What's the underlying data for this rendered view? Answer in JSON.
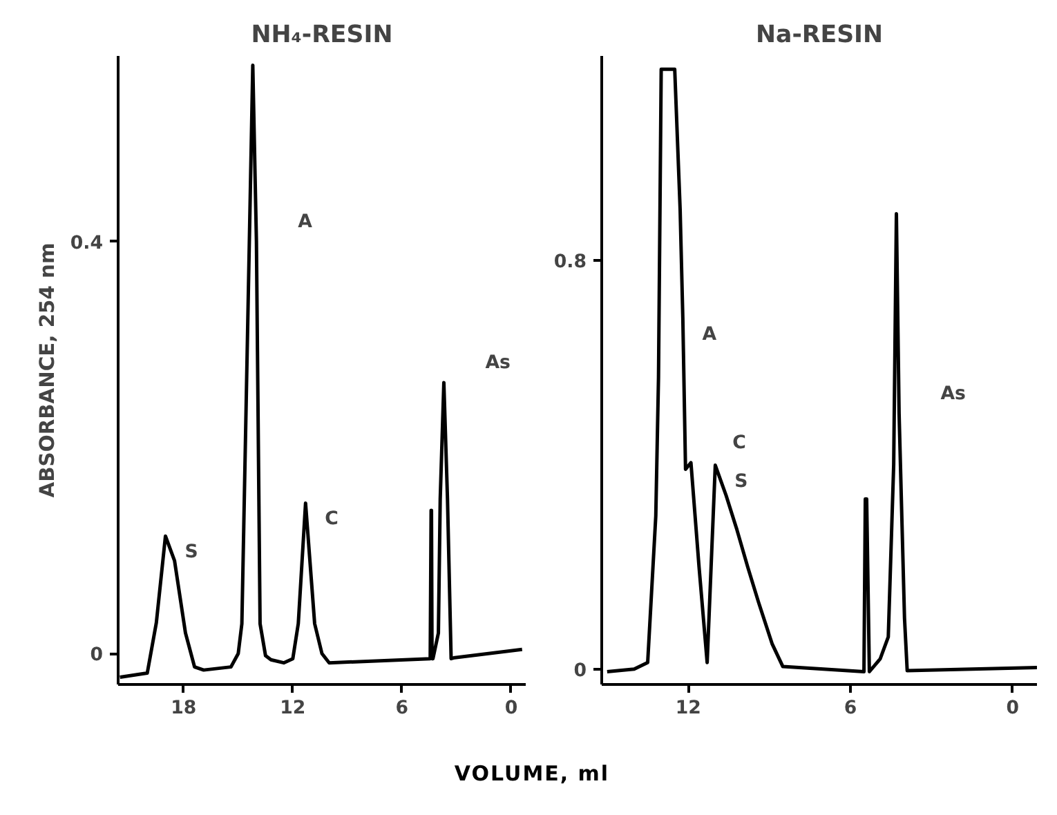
{
  "chart_data": [
    {
      "type": "line",
      "title": "NH₄-RESIN",
      "xlabel": "VOLUME, ml",
      "ylabel": "ABSORBANCE, 254 nm",
      "xlim": [
        21.6,
        -0.8
      ],
      "ylim": [
        -0.03,
        0.58
      ],
      "xticks": [
        18,
        12,
        6,
        0
      ],
      "yticks": [
        0,
        0.4
      ],
      "grid": false,
      "series": [
        {
          "color": "#000000",
          "x": [
            21.5,
            20.0,
            19.5,
            19.0,
            18.5,
            17.9,
            17.4,
            16.9,
            15.4,
            15.0,
            14.8,
            14.5,
            14.2,
            14.0,
            13.8,
            13.5,
            13.2,
            12.5,
            12.0,
            11.7,
            11.3,
            10.8,
            10.4,
            10.0,
            4.45,
            4.4,
            4.38,
            4.35,
            4.3,
            4.0,
            3.9,
            3.7,
            3.5,
            3.3,
            3.1,
            -0.6
          ],
          "values": [
            -0.023,
            -0.019,
            0.03,
            0.114,
            0.09,
            0.02,
            -0.013,
            -0.016,
            -0.013,
            0.0,
            0.029,
            0.3,
            0.571,
            0.4,
            0.029,
            -0.002,
            -0.006,
            -0.009,
            -0.005,
            0.029,
            0.146,
            0.029,
            0.0,
            -0.009,
            -0.005,
            0.139,
            0.139,
            -0.005,
            -0.005,
            0.02,
            0.15,
            0.263,
            0.15,
            -0.005,
            -0.004,
            0.004
          ]
        }
      ],
      "annotations": [
        {
          "text": "S",
          "x": 19.0,
          "y": 0.114
        },
        {
          "text": "A",
          "x": 14.0,
          "y": 0.4
        },
        {
          "text": "C",
          "x": 11.3,
          "y": 0.146
        },
        {
          "text": "As",
          "x": 3.7,
          "y": 0.263
        }
      ]
    },
    {
      "type": "line",
      "title": "Na-RESIN",
      "xlim": [
        15.2,
        -0.9
      ],
      "ylim": [
        -0.03,
        1.2
      ],
      "xticks": [
        12,
        6,
        0
      ],
      "yticks": [
        0,
        0.8
      ],
      "grid": false,
      "series": [
        {
          "color": "#000000",
          "x": [
            15.0,
            14.0,
            13.5,
            13.2,
            13.1,
            13.0,
            12.5,
            12.3,
            12.2,
            12.1,
            11.9,
            11.6,
            11.3,
            11.0,
            10.6,
            10.2,
            9.8,
            9.4,
            8.9,
            8.5,
            5.5,
            5.45,
            5.4,
            5.3,
            4.9,
            4.6,
            4.4,
            4.3,
            4.2,
            4.0,
            3.9,
            -0.9
          ],
          "values": [
            -0.005,
            0.0,
            0.013,
            0.3,
            0.57,
            1.174,
            1.174,
            0.9,
            0.687,
            0.391,
            0.404,
            0.2,
            0.013,
            0.399,
            0.34,
            0.273,
            0.2,
            0.131,
            0.05,
            0.005,
            -0.005,
            0.333,
            0.333,
            -0.005,
            0.02,
            0.063,
            0.4,
            0.891,
            0.5,
            0.1,
            -0.003,
            0.003
          ]
        }
      ],
      "annotations": [
        {
          "text": "A",
          "x": 12.2,
          "y": 0.687
        },
        {
          "text": "C",
          "x": 11.9,
          "y": 0.404
        },
        {
          "text": "S",
          "x": 11.0,
          "y": 0.399
        },
        {
          "text": "As",
          "x": 4.2,
          "y": 0.5
        }
      ]
    }
  ]
}
